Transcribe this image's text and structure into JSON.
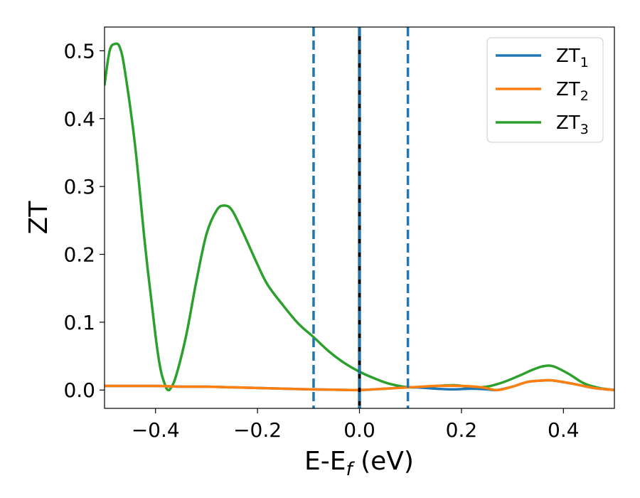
{
  "chart_data": {
    "type": "line",
    "xlabel": "E-E",
    "xlabel_sub": "f",
    "xlabel_unit": " (eV)",
    "ylabel": "ZT",
    "xlim": [
      -0.5,
      0.5
    ],
    "ylim": [
      -0.027,
      0.535
    ],
    "xticks": [
      -0.4,
      -0.2,
      0.0,
      0.2,
      0.4
    ],
    "xtick_labels": [
      "−0.4",
      "−0.2",
      "0.0",
      "0.2",
      "0.4"
    ],
    "yticks": [
      0.0,
      0.1,
      0.2,
      0.3,
      0.4,
      0.5
    ],
    "ytick_labels": [
      "0.0",
      "0.1",
      "0.2",
      "0.3",
      "0.4",
      "0.5"
    ],
    "legend_position": "top-right",
    "grid": false,
    "series": [
      {
        "name": "ZT",
        "name_sub": "1",
        "color": "#1f77b4",
        "points": [
          [
            -0.5,
            0.006
          ],
          [
            -0.45,
            0.006
          ],
          [
            -0.4,
            0.006
          ],
          [
            -0.35,
            0.005
          ],
          [
            -0.3,
            0.005
          ],
          [
            -0.25,
            0.004
          ],
          [
            -0.2,
            0.003
          ],
          [
            -0.15,
            0.002
          ],
          [
            -0.1,
            0.001
          ],
          [
            -0.05,
            0.0005
          ],
          [
            0.0,
            0.0
          ],
          [
            0.05,
            0.002
          ],
          [
            0.1,
            0.004
          ],
          [
            0.15,
            0.002
          ],
          [
            0.18,
            0.001
          ],
          [
            0.22,
            0.002
          ],
          [
            0.25,
            0.001
          ],
          [
            0.27,
            0.0
          ],
          [
            0.3,
            0.005
          ],
          [
            0.33,
            0.012
          ],
          [
            0.36,
            0.014
          ],
          [
            0.38,
            0.014
          ],
          [
            0.42,
            0.009
          ],
          [
            0.46,
            0.003
          ],
          [
            0.5,
            0.0
          ]
        ]
      },
      {
        "name": "ZT",
        "name_sub": "2",
        "color": "#ff7f0e",
        "points": [
          [
            -0.5,
            0.006
          ],
          [
            -0.45,
            0.006
          ],
          [
            -0.4,
            0.006
          ],
          [
            -0.35,
            0.005
          ],
          [
            -0.3,
            0.005
          ],
          [
            -0.25,
            0.004
          ],
          [
            -0.2,
            0.003
          ],
          [
            -0.15,
            0.002
          ],
          [
            -0.1,
            0.001
          ],
          [
            -0.05,
            0.0005
          ],
          [
            0.0,
            0.0
          ],
          [
            0.05,
            0.002
          ],
          [
            0.1,
            0.004
          ],
          [
            0.15,
            0.006
          ],
          [
            0.2,
            0.006
          ],
          [
            0.24,
            0.004
          ],
          [
            0.27,
            0.0
          ],
          [
            0.3,
            0.005
          ],
          [
            0.33,
            0.012
          ],
          [
            0.36,
            0.014
          ],
          [
            0.38,
            0.014
          ],
          [
            0.42,
            0.009
          ],
          [
            0.46,
            0.003
          ],
          [
            0.5,
            0.0
          ]
        ]
      },
      {
        "name": "ZT",
        "name_sub": "3",
        "color": "#2ca02c",
        "points": [
          [
            -0.5,
            0.45
          ],
          [
            -0.49,
            0.5
          ],
          [
            -0.48,
            0.51
          ],
          [
            -0.47,
            0.505
          ],
          [
            -0.46,
            0.47
          ],
          [
            -0.44,
            0.36
          ],
          [
            -0.42,
            0.21
          ],
          [
            -0.4,
            0.08
          ],
          [
            -0.39,
            0.03
          ],
          [
            -0.38,
            0.005
          ],
          [
            -0.375,
            0.0
          ],
          [
            -0.37,
            0.003
          ],
          [
            -0.36,
            0.02
          ],
          [
            -0.34,
            0.08
          ],
          [
            -0.32,
            0.16
          ],
          [
            -0.3,
            0.23
          ],
          [
            -0.28,
            0.265
          ],
          [
            -0.265,
            0.272
          ],
          [
            -0.25,
            0.265
          ],
          [
            -0.23,
            0.235
          ],
          [
            -0.2,
            0.185
          ],
          [
            -0.18,
            0.155
          ],
          [
            -0.15,
            0.125
          ],
          [
            -0.12,
            0.098
          ],
          [
            -0.09,
            0.078
          ],
          [
            -0.06,
            0.057
          ],
          [
            -0.03,
            0.04
          ],
          [
            0.0,
            0.027
          ],
          [
            0.03,
            0.017
          ],
          [
            0.06,
            0.009
          ],
          [
            0.1,
            0.004
          ],
          [
            0.15,
            0.006
          ],
          [
            0.19,
            0.007
          ],
          [
            0.22,
            0.004
          ],
          [
            0.25,
            0.005
          ],
          [
            0.28,
            0.011
          ],
          [
            0.31,
            0.02
          ],
          [
            0.34,
            0.03
          ],
          [
            0.36,
            0.035
          ],
          [
            0.38,
            0.035
          ],
          [
            0.41,
            0.024
          ],
          [
            0.44,
            0.01
          ],
          [
            0.47,
            0.003
          ],
          [
            0.5,
            0.0
          ]
        ]
      }
    ],
    "vertical_lines": [
      {
        "x": -0.09,
        "color": "#1f77b4",
        "style": "dashed"
      },
      {
        "x": 0.0,
        "color": "#000000",
        "style": "solid"
      },
      {
        "x": 0.0,
        "color": "#1f77b4",
        "style": "dashed"
      },
      {
        "x": 0.095,
        "color": "#1f77b4",
        "style": "dashed"
      }
    ]
  }
}
